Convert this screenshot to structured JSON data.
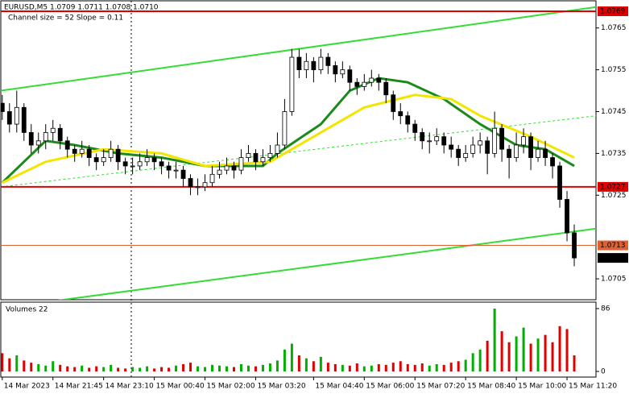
{
  "chart_data": {
    "type": "candlestick",
    "title": "EURUSD,M5  1.0709 1.0711 1.0708 1.0710",
    "subtitle": "Channel size = 52 Slope = 0.11",
    "volume_title": "Volumes 22",
    "up_color": "#ffffff",
    "down_color": "#000000",
    "xlim": [
      -0.2,
      82
    ],
    "xticks": [
      {
        "value": 0,
        "label": "14 Mar 2023"
      },
      {
        "value": 7,
        "label": "14 Mar 21:45"
      },
      {
        "value": 14,
        "label": "14 Mar 23:10"
      },
      {
        "value": 21,
        "label": "15 Mar 00:40"
      },
      {
        "value": 28,
        "label": "15 Mar 02:00"
      },
      {
        "value": 35,
        "label": "15 Mar 03:20"
      },
      {
        "value": 43,
        "label": "15 Mar 04:40"
      },
      {
        "value": 50,
        "label": "15 Mar 06:00"
      },
      {
        "value": 57,
        "label": "15 Mar 07:20"
      },
      {
        "value": 64,
        "label": "15 Mar 08:40"
      },
      {
        "value": 71,
        "label": "15 Mar 10:00"
      },
      {
        "value": 78,
        "label": "15 Mar 11:20"
      }
    ],
    "ylim": [
      1.07,
      1.07715
    ],
    "yticks": [
      1.0765,
      1.0755,
      1.0745,
      1.0735,
      1.0725,
      1.0705
    ],
    "markers": [
      {
        "value": 1.0769,
        "color": "#e00000"
      },
      {
        "value": 1.0727,
        "color": "#e00000"
      },
      {
        "value": 1.0713,
        "color": "#e06030"
      },
      {
        "value": 1.071,
        "label": "1.0710",
        "color": "#000000"
      }
    ],
    "channel": {
      "color": "#33dd33",
      "upper": [
        1.075,
        1.077
      ],
      "middle": [
        1.0727,
        1.0744
      ],
      "lower": [
        1.0698,
        1.0717
      ]
    },
    "candles": [
      [
        1.0747,
        1.0749,
        1.0743,
        1.0745
      ],
      [
        1.0745,
        1.0747,
        1.074,
        1.0742
      ],
      [
        1.0742,
        1.075,
        1.074,
        1.0746
      ],
      [
        1.0746,
        1.0747,
        1.0738,
        1.074
      ],
      [
        1.074,
        1.0742,
        1.0735,
        1.0737
      ],
      [
        1.0737,
        1.074,
        1.0735,
        1.0738
      ],
      [
        1.0738,
        1.0742,
        1.0736,
        1.074
      ],
      [
        1.074,
        1.0743,
        1.0738,
        1.0741
      ],
      [
        1.0741,
        1.0742,
        1.0736,
        1.0738
      ],
      [
        1.0738,
        1.0739,
        1.0734,
        1.0736
      ],
      [
        1.0736,
        1.0737,
        1.0733,
        1.0735
      ],
      [
        1.0735,
        1.0738,
        1.0734,
        1.0736
      ],
      [
        1.0736,
        1.0737,
        1.0732,
        1.0734
      ],
      [
        1.0734,
        1.0735,
        1.0731,
        1.0733
      ],
      [
        1.0733,
        1.0736,
        1.0732,
        1.0734
      ],
      [
        1.0734,
        1.0738,
        1.0733,
        1.0736
      ],
      [
        1.0736,
        1.0737,
        1.0731,
        1.0733
      ],
      [
        1.0733,
        1.0734,
        1.073,
        1.0732
      ],
      [
        1.0732,
        1.0734,
        1.073,
        1.0732
      ],
      [
        1.0732,
        1.0735,
        1.0731,
        1.0733
      ],
      [
        1.0733,
        1.0736,
        1.0732,
        1.0734
      ],
      [
        1.0734,
        1.0735,
        1.0731,
        1.0733
      ],
      [
        1.0733,
        1.0734,
        1.073,
        1.0732
      ],
      [
        1.0732,
        1.0733,
        1.0729,
        1.0731
      ],
      [
        1.0731,
        1.0733,
        1.0729,
        1.0731
      ],
      [
        1.0731,
        1.0732,
        1.0727,
        1.0729
      ],
      [
        1.0729,
        1.073,
        1.0725,
        1.0727
      ],
      [
        1.0727,
        1.0729,
        1.0725,
        1.0727
      ],
      [
        1.0727,
        1.073,
        1.0726,
        1.0728
      ],
      [
        1.0728,
        1.0732,
        1.0727,
        1.073
      ],
      [
        1.073,
        1.0733,
        1.0729,
        1.0731
      ],
      [
        1.0731,
        1.0734,
        1.073,
        1.0732
      ],
      [
        1.0732,
        1.0733,
        1.0729,
        1.0731
      ],
      [
        1.0731,
        1.0736,
        1.073,
        1.0734
      ],
      [
        1.0734,
        1.0737,
        1.0733,
        1.0735
      ],
      [
        1.0735,
        1.0736,
        1.0731,
        1.0733
      ],
      [
        1.0733,
        1.0736,
        1.0732,
        1.0734
      ],
      [
        1.0734,
        1.0737,
        1.0733,
        1.0735
      ],
      [
        1.0735,
        1.074,
        1.0734,
        1.0737
      ],
      [
        1.0737,
        1.0748,
        1.0736,
        1.0745
      ],
      [
        1.0745,
        1.076,
        1.0744,
        1.0758
      ],
      [
        1.0758,
        1.076,
        1.0753,
        1.0755
      ],
      [
        1.0755,
        1.0759,
        1.0753,
        1.0757
      ],
      [
        1.0757,
        1.0758,
        1.0752,
        1.0755
      ],
      [
        1.0755,
        1.076,
        1.0754,
        1.0758
      ],
      [
        1.0758,
        1.0759,
        1.0754,
        1.0756
      ],
      [
        1.0756,
        1.0757,
        1.0752,
        1.0754
      ],
      [
        1.0754,
        1.0757,
        1.0753,
        1.0755
      ],
      [
        1.0755,
        1.0756,
        1.075,
        1.0752
      ],
      [
        1.0752,
        1.0753,
        1.0749,
        1.0751
      ],
      [
        1.0751,
        1.0754,
        1.075,
        1.0752
      ],
      [
        1.0752,
        1.0755,
        1.0751,
        1.0753
      ],
      [
        1.0753,
        1.0754,
        1.075,
        1.0752
      ],
      [
        1.0752,
        1.0753,
        1.0747,
        1.0749
      ],
      [
        1.0749,
        1.075,
        1.0743,
        1.0745
      ],
      [
        1.0745,
        1.0747,
        1.0742,
        1.0744
      ],
      [
        1.0744,
        1.0745,
        1.074,
        1.0742
      ],
      [
        1.0742,
        1.0743,
        1.0738,
        1.074
      ],
      [
        1.074,
        1.0741,
        1.0736,
        1.0738
      ],
      [
        1.0738,
        1.074,
        1.0735,
        1.0738
      ],
      [
        1.0738,
        1.0741,
        1.0737,
        1.0739
      ],
      [
        1.0739,
        1.074,
        1.0735,
        1.0737
      ],
      [
        1.0737,
        1.0739,
        1.0734,
        1.0736
      ],
      [
        1.0736,
        1.0737,
        1.0732,
        1.0734
      ],
      [
        1.0734,
        1.0737,
        1.0733,
        1.0735
      ],
      [
        1.0735,
        1.0739,
        1.0734,
        1.0737
      ],
      [
        1.0737,
        1.074,
        1.0735,
        1.0738
      ],
      [
        1.0738,
        1.0739,
        1.073,
        1.0735
      ],
      [
        1.0735,
        1.0745,
        1.0734,
        1.0741
      ],
      [
        1.0741,
        1.0742,
        1.0733,
        1.0736
      ],
      [
        1.0736,
        1.0737,
        1.0729,
        1.0734
      ],
      [
        1.0734,
        1.074,
        1.0733,
        1.0737
      ],
      [
        1.0737,
        1.0741,
        1.0735,
        1.0739
      ],
      [
        1.0739,
        1.074,
        1.0731,
        1.0734
      ],
      [
        1.0734,
        1.0738,
        1.0733,
        1.0736
      ],
      [
        1.0736,
        1.0738,
        1.0732,
        1.0734
      ],
      [
        1.0734,
        1.0735,
        1.0729,
        1.0732
      ],
      [
        1.0732,
        1.0733,
        1.0722,
        1.0724
      ],
      [
        1.0724,
        1.0726,
        1.0714,
        1.0716
      ],
      [
        1.0716,
        1.0718,
        1.0708,
        1.071
      ]
    ],
    "ma": [
      {
        "color": "#1a8a1a",
        "x": [
          0,
          6,
          10,
          16,
          22,
          28,
          36,
          38,
          44,
          48,
          52,
          56,
          61,
          66,
          71,
          75,
          79
        ],
        "values": [
          1.0728,
          1.0738,
          1.0737,
          1.0735,
          1.0734,
          1.0732,
          1.0732,
          1.0735,
          1.0742,
          1.075,
          1.0753,
          1.0752,
          1.0748,
          1.0742,
          1.0737,
          1.0736,
          1.0732
        ]
      },
      {
        "color": "#f2e600",
        "x": [
          0,
          6,
          14,
          22,
          28,
          37,
          44,
          50,
          57,
          62,
          66,
          73,
          79
        ],
        "values": [
          1.0728,
          1.0733,
          1.0736,
          1.0735,
          1.0732,
          1.0733,
          1.074,
          1.0746,
          1.0749,
          1.0748,
          1.0744,
          1.0739,
          1.0734
        ]
      }
    ],
    "volume_colors": [
      "#00b000",
      "#e00000"
    ],
    "volume_ylim": [
      0,
      86
    ],
    "volume_yticks": [
      86,
      0
    ],
    "volumes": [
      25,
      18,
      22,
      15,
      12,
      10,
      8,
      14,
      9,
      7,
      6,
      8,
      5,
      7,
      6,
      9,
      5,
      4,
      6,
      5,
      7,
      4,
      6,
      5,
      8,
      10,
      12,
      7,
      6,
      9,
      8,
      7,
      6,
      10,
      8,
      7,
      9,
      11,
      15,
      30,
      38,
      22,
      18,
      14,
      20,
      12,
      10,
      9,
      8,
      11,
      7,
      8,
      10,
      9,
      12,
      14,
      10,
      9,
      11,
      8,
      10,
      9,
      12,
      14,
      16,
      25,
      30,
      42,
      86,
      55,
      40,
      48,
      60,
      38,
      45,
      50,
      40,
      62,
      58,
      22
    ]
  }
}
